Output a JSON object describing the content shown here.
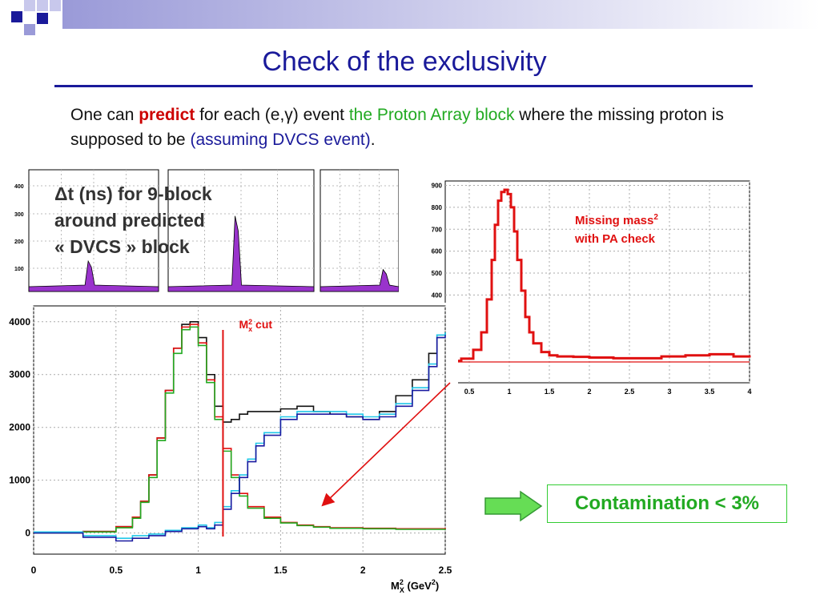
{
  "slide": {
    "title": "Check of the exclusivity",
    "intro": {
      "t1": "One can ",
      "t2": "predict",
      "t3": " for each (e,γ) event ",
      "t4": "the Proton Array block",
      "t5": " where the missing proton is supposed to be ",
      "t6": "(assuming DVCS event)",
      "t7": "."
    },
    "delta_t_label": {
      "line1": "Δt (ns) for 9-block",
      "line2": "around predicted",
      "line3": "« DVCS » block"
    },
    "contamination": "Contamination < 3%"
  },
  "colors": {
    "title": "#1a1a9a",
    "red": "#e01010",
    "green": "#22aa22",
    "cyan": "#22c8e8",
    "blue": "#1a1aa0",
    "purple": "#9933cc"
  },
  "chart_data": [
    {
      "type": "bar",
      "name_hint": "delta-t small histograms",
      "yticks": [
        "400",
        "300",
        "200",
        "100"
      ],
      "panels": [
        {
          "peak": 0.25
        },
        {
          "peak": 0.62
        },
        {
          "peak": 0.18
        }
      ]
    },
    {
      "type": "line",
      "annotation": "Missing mass² with PA check",
      "annotation_l1": "Missing mass",
      "annotation_sup": "2",
      "annotation_l2": "with PA check",
      "xlim": [
        0.2,
        4
      ],
      "ylim": [
        0,
        920
      ],
      "xticks": [
        0.5,
        1,
        1.5,
        2,
        2.5,
        3,
        3.5,
        4
      ],
      "xtick_labels": [
        "0.5",
        "1",
        "1.5",
        "2",
        "2.5",
        "3",
        "3.5",
        "4"
      ],
      "yticks": [
        400,
        500,
        600,
        700,
        800,
        900
      ],
      "ytick_labels": [
        "400",
        "500",
        "600",
        "700",
        "800",
        "900"
      ],
      "baseline": 95,
      "series": [
        {
          "x": [
            0.2,
            0.4,
            0.55,
            0.65,
            0.72,
            0.78,
            0.82,
            0.86,
            0.9,
            0.94,
            0.98,
            1.02,
            1.06,
            1.1,
            1.15,
            1.2,
            1.25,
            1.3,
            1.4,
            1.5,
            1.6,
            1.8,
            2,
            2.3,
            2.6,
            2.9,
            3.2,
            3.5,
            3.8,
            4
          ],
          "values": [
            100,
            110,
            150,
            230,
            380,
            560,
            720,
            830,
            870,
            880,
            860,
            800,
            690,
            560,
            420,
            300,
            230,
            180,
            140,
            125,
            120,
            118,
            115,
            112,
            112,
            120,
            125,
            130,
            120,
            115
          ]
        }
      ]
    },
    {
      "type": "line",
      "xlabel": "M",
      "xlabel_sub": "X",
      "xlabel_sup": "2",
      "xlabel_unit": " (GeV",
      "xlabel_unit_sup": "2",
      "xlabel_end": ")",
      "cut_label": "M",
      "cut_sub": "x",
      "cut_sup": "2",
      "cut_text": " cut",
      "cut_x": 1.15,
      "xlim": [
        0,
        2.5
      ],
      "ylim": [
        -400,
        4300
      ],
      "xticks": [
        0,
        0.5,
        1,
        1.5,
        2,
        2.5
      ],
      "xtick_labels": [
        "0",
        "0.5",
        "1",
        "1.5",
        "2",
        "2.5"
      ],
      "yticks": [
        0,
        1000,
        2000,
        3000,
        4000
      ],
      "ytick_labels": [
        "0",
        "1000",
        "2000",
        "3000",
        "4000"
      ],
      "series": [
        {
          "key": "black",
          "x": [
            0,
            0.3,
            0.5,
            0.6,
            0.65,
            0.7,
            0.75,
            0.8,
            0.85,
            0.9,
            0.95,
            1.0,
            1.05,
            1.1,
            1.15,
            1.2,
            1.25,
            1.3,
            1.4,
            1.5,
            1.6,
            1.7,
            1.8,
            1.9,
            2.0,
            2.1,
            2.2,
            2.3,
            2.4,
            2.45,
            2.5
          ],
          "values": [
            10,
            30,
            120,
            300,
            600,
            1100,
            1800,
            2700,
            3500,
            3950,
            4000,
            3700,
            3000,
            2400,
            2100,
            2150,
            2250,
            2300,
            2300,
            2350,
            2400,
            2300,
            2250,
            2200,
            2150,
            2300,
            2600,
            2900,
            3400,
            3750,
            3800
          ]
        },
        {
          "key": "red",
          "x": [
            0,
            0.3,
            0.5,
            0.6,
            0.65,
            0.7,
            0.75,
            0.8,
            0.85,
            0.9,
            0.95,
            1.0,
            1.05,
            1.1,
            1.15,
            1.2,
            1.25,
            1.3,
            1.4,
            1.5,
            1.6,
            1.7,
            1.8,
            2.0,
            2.2,
            2.5
          ],
          "values": [
            10,
            30,
            120,
            300,
            600,
            1100,
            1800,
            2700,
            3500,
            3900,
            3950,
            3600,
            2900,
            2200,
            1600,
            1100,
            750,
            500,
            300,
            200,
            150,
            120,
            100,
            90,
            80,
            100
          ]
        },
        {
          "key": "green",
          "x": [
            0,
            0.3,
            0.5,
            0.6,
            0.65,
            0.7,
            0.75,
            0.8,
            0.85,
            0.9,
            0.95,
            1.0,
            1.05,
            1.1,
            1.15,
            1.2,
            1.25,
            1.3,
            1.4,
            1.5,
            1.6,
            1.7,
            1.8,
            2.0,
            2.2,
            2.5
          ],
          "values": [
            0,
            20,
            100,
            280,
            580,
            1050,
            1750,
            2650,
            3400,
            3850,
            3900,
            3550,
            2850,
            2150,
            1550,
            1050,
            700,
            470,
            280,
            190,
            140,
            110,
            90,
            80,
            70,
            60
          ]
        },
        {
          "key": "cyan",
          "x": [
            0,
            0.3,
            0.5,
            0.6,
            0.7,
            0.8,
            0.9,
            1.0,
            1.05,
            1.1,
            1.15,
            1.2,
            1.25,
            1.3,
            1.35,
            1.4,
            1.5,
            1.6,
            1.7,
            1.8,
            1.9,
            2.0,
            2.1,
            2.2,
            2.3,
            2.4,
            2.45,
            2.5
          ],
          "values": [
            20,
            -50,
            -100,
            -50,
            -20,
            50,
            100,
            150,
            100,
            200,
            500,
            800,
            1100,
            1400,
            1700,
            1900,
            2200,
            2300,
            2300,
            2300,
            2250,
            2200,
            2250,
            2450,
            2750,
            3200,
            3750,
            3800
          ]
        },
        {
          "key": "blue",
          "x": [
            0,
            0.3,
            0.5,
            0.6,
            0.7,
            0.8,
            0.9,
            1.0,
            1.05,
            1.1,
            1.15,
            1.2,
            1.25,
            1.3,
            1.35,
            1.4,
            1.5,
            1.6,
            1.7,
            1.8,
            1.9,
            2.0,
            2.1,
            2.2,
            2.3,
            2.4,
            2.45,
            2.5
          ],
          "values": [
            0,
            -80,
            -150,
            -100,
            -50,
            30,
            80,
            120,
            80,
            150,
            450,
            750,
            1050,
            1350,
            1650,
            1850,
            2150,
            2250,
            2250,
            2250,
            2200,
            2150,
            2200,
            2400,
            2700,
            3150,
            3700,
            3750
          ]
        }
      ]
    }
  ]
}
